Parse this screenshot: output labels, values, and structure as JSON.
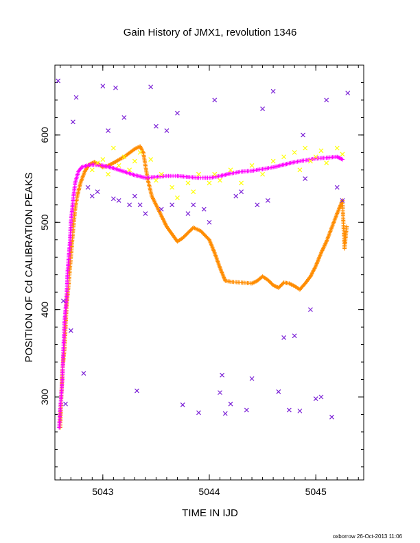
{
  "chart_data": {
    "type": "scatter",
    "title": "Gain History of JMX1, revolution 1346",
    "xlabel": "TIME IN IJD",
    "ylabel": "POSITION OF Cd CALIBRATION PEAKS",
    "xlim": [
      5042.55,
      5045.45
    ],
    "ylim": [
      205,
      680
    ],
    "xticks": [
      5043,
      5044,
      5045
    ],
    "yticks": [
      300,
      400,
      500,
      600
    ],
    "grid": false,
    "footer": "oxborrow 26-Oct-2013 11:06",
    "colors": {
      "purple": "#7a1fd6",
      "yellow": "#ffff00",
      "orange": "#ff8c00",
      "magenta": "#ff00ff"
    },
    "series": [
      {
        "color": "#ff8c00",
        "marker": "plus",
        "points": [
          [
            5042.6,
            265
          ],
          [
            5042.61,
            300
          ],
          [
            5042.62,
            330
          ],
          [
            5042.64,
            355
          ],
          [
            5042.65,
            380
          ],
          [
            5042.66,
            405
          ],
          [
            5042.68,
            430
          ],
          [
            5042.7,
            460
          ],
          [
            5042.72,
            490
          ],
          [
            5042.74,
            515
          ],
          [
            5042.76,
            530
          ],
          [
            5042.79,
            545
          ],
          [
            5042.83,
            558
          ],
          [
            5042.87,
            566
          ],
          [
            5042.92,
            569
          ],
          [
            5042.97,
            566
          ],
          [
            5043.0,
            563
          ],
          [
            5043.05,
            565
          ],
          [
            5043.1,
            568
          ],
          [
            5043.2,
            575
          ],
          [
            5043.3,
            584
          ],
          [
            5043.35,
            587
          ],
          [
            5043.38,
            580
          ],
          [
            5043.42,
            550
          ],
          [
            5043.46,
            530
          ],
          [
            5043.52,
            515
          ],
          [
            5043.6,
            495
          ],
          [
            5043.7,
            478
          ],
          [
            5043.75,
            482
          ],
          [
            5043.8,
            488
          ],
          [
            5043.85,
            494
          ],
          [
            5043.92,
            490
          ],
          [
            5044.0,
            480
          ],
          [
            5044.05,
            465
          ],
          [
            5044.1,
            448
          ],
          [
            5044.15,
            433
          ],
          [
            5044.2,
            432
          ],
          [
            5044.3,
            431
          ],
          [
            5044.4,
            430
          ],
          [
            5044.45,
            433
          ],
          [
            5044.5,
            438
          ],
          [
            5044.55,
            434
          ],
          [
            5044.6,
            428
          ],
          [
            5044.65,
            425
          ],
          [
            5044.7,
            431
          ],
          [
            5044.75,
            430
          ],
          [
            5044.8,
            427
          ],
          [
            5044.85,
            423
          ],
          [
            5044.9,
            430
          ],
          [
            5044.95,
            438
          ],
          [
            5045.0,
            450
          ],
          [
            5045.05,
            465
          ],
          [
            5045.1,
            478
          ],
          [
            5045.15,
            494
          ],
          [
            5045.2,
            510
          ],
          [
            5045.25,
            525
          ],
          [
            5045.27,
            470
          ],
          [
            5045.29,
            495
          ]
        ]
      },
      {
        "color": "#ff00ff",
        "marker": "plus",
        "points": [
          [
            5042.59,
            265
          ],
          [
            5042.6,
            285
          ],
          [
            5042.62,
            320
          ],
          [
            5042.63,
            355
          ],
          [
            5042.64,
            385
          ],
          [
            5042.66,
            415
          ],
          [
            5042.67,
            445
          ],
          [
            5042.69,
            475
          ],
          [
            5042.7,
            500
          ],
          [
            5042.72,
            525
          ],
          [
            5042.74,
            545
          ],
          [
            5042.77,
            558
          ],
          [
            5042.8,
            563
          ],
          [
            5042.85,
            565
          ],
          [
            5042.9,
            566
          ],
          [
            5043.0,
            565
          ],
          [
            5043.1,
            562
          ],
          [
            5043.2,
            558
          ],
          [
            5043.3,
            554
          ],
          [
            5043.4,
            551
          ],
          [
            5043.5,
            552
          ],
          [
            5043.6,
            553
          ],
          [
            5043.7,
            553
          ],
          [
            5043.8,
            552
          ],
          [
            5043.9,
            551
          ],
          [
            5044.0,
            551
          ],
          [
            5044.1,
            553
          ],
          [
            5044.2,
            556
          ],
          [
            5044.3,
            558
          ],
          [
            5044.4,
            559
          ],
          [
            5044.5,
            561
          ],
          [
            5044.6,
            563
          ],
          [
            5044.7,
            566
          ],
          [
            5044.8,
            569
          ],
          [
            5044.9,
            571
          ],
          [
            5045.0,
            573
          ],
          [
            5045.1,
            574
          ],
          [
            5045.2,
            575
          ],
          [
            5045.25,
            572
          ]
        ]
      },
      {
        "color": "#ffff00",
        "marker": "x",
        "points": [
          [
            5042.9,
            560
          ],
          [
            5042.95,
            568
          ],
          [
            5043.0,
            572
          ],
          [
            5043.05,
            555
          ],
          [
            5043.1,
            585
          ],
          [
            5043.15,
            565
          ],
          [
            5043.2,
            575
          ],
          [
            5043.25,
            560
          ],
          [
            5043.3,
            570
          ],
          [
            5043.35,
            580
          ],
          [
            5043.45,
            572
          ],
          [
            5043.5,
            548
          ],
          [
            5043.55,
            555
          ],
          [
            5043.65,
            540
          ],
          [
            5043.7,
            528
          ],
          [
            5043.8,
            545
          ],
          [
            5043.85,
            535
          ],
          [
            5043.9,
            555
          ],
          [
            5044.0,
            545
          ],
          [
            5044.05,
            555
          ],
          [
            5044.1,
            548
          ],
          [
            5044.2,
            560
          ],
          [
            5044.3,
            545
          ],
          [
            5044.4,
            565
          ],
          [
            5044.5,
            555
          ],
          [
            5044.6,
            570
          ],
          [
            5044.7,
            575
          ],
          [
            5044.8,
            580
          ],
          [
            5044.85,
            560
          ],
          [
            5044.9,
            585
          ],
          [
            5044.95,
            570
          ],
          [
            5045.0,
            575
          ],
          [
            5045.05,
            582
          ],
          [
            5045.1,
            568
          ],
          [
            5045.2,
            585
          ],
          [
            5045.25,
            578
          ]
        ]
      },
      {
        "color": "#7a1fd6",
        "marker": "x",
        "points": [
          [
            5042.58,
            662
          ],
          [
            5042.63,
            410
          ],
          [
            5042.65,
            292
          ],
          [
            5042.7,
            376
          ],
          [
            5042.72,
            615
          ],
          [
            5042.75,
            643
          ],
          [
            5042.82,
            327
          ],
          [
            5042.86,
            540
          ],
          [
            5042.9,
            530
          ],
          [
            5042.95,
            535
          ],
          [
            5043.0,
            656
          ],
          [
            5043.05,
            605
          ],
          [
            5043.1,
            527
          ],
          [
            5043.12,
            654
          ],
          [
            5043.15,
            525
          ],
          [
            5043.2,
            620
          ],
          [
            5043.25,
            520
          ],
          [
            5043.3,
            530
          ],
          [
            5043.32,
            307
          ],
          [
            5043.35,
            520
          ],
          [
            5043.4,
            510
          ],
          [
            5043.45,
            655
          ],
          [
            5043.5,
            610
          ],
          [
            5043.55,
            515
          ],
          [
            5043.6,
            605
          ],
          [
            5043.65,
            520
          ],
          [
            5043.7,
            625
          ],
          [
            5043.75,
            291
          ],
          [
            5043.8,
            510
          ],
          [
            5043.85,
            520
          ],
          [
            5043.9,
            282
          ],
          [
            5043.95,
            515
          ],
          [
            5044.0,
            500
          ],
          [
            5044.05,
            640
          ],
          [
            5044.1,
            305
          ],
          [
            5044.12,
            325
          ],
          [
            5044.15,
            281
          ],
          [
            5044.2,
            292
          ],
          [
            5044.25,
            530
          ],
          [
            5044.3,
            535
          ],
          [
            5044.35,
            285
          ],
          [
            5044.4,
            321
          ],
          [
            5044.45,
            520
          ],
          [
            5044.5,
            630
          ],
          [
            5044.55,
            525
          ],
          [
            5044.6,
            650
          ],
          [
            5044.65,
            306
          ],
          [
            5044.7,
            368
          ],
          [
            5044.75,
            285
          ],
          [
            5044.8,
            370
          ],
          [
            5044.85,
            284
          ],
          [
            5044.88,
            600
          ],
          [
            5044.9,
            550
          ],
          [
            5044.95,
            400
          ],
          [
            5045.0,
            298
          ],
          [
            5045.05,
            300
          ],
          [
            5045.1,
            640
          ],
          [
            5045.15,
            277
          ],
          [
            5045.2,
            540
          ],
          [
            5045.25,
            525
          ],
          [
            5045.3,
            648
          ]
        ]
      }
    ]
  }
}
